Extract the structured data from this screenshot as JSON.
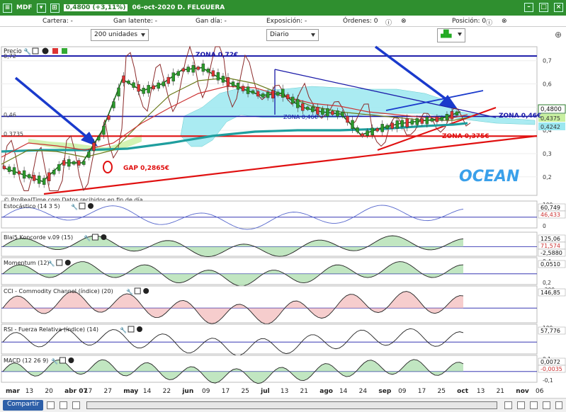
{
  "window": {
    "symbol": "MDF",
    "price_change": "0,4800 (+3,11%)",
    "date_title": "06-oct-2020 D. FELGUERA"
  },
  "account": {
    "cartera": "Cartera: -",
    "gan_latente": "Gan latente: -",
    "gan_dia": "Gan día: -",
    "exposicion": "Exposición: -",
    "ordenes": "Órdenes: 0",
    "posicion": "Posición: 0"
  },
  "toolbar": {
    "units": "200 unidades",
    "period": "Diario"
  },
  "colors": {
    "titlebar": "#2f8f2f",
    "blue_zone": "#1a1aa8",
    "red_zone": "#e01010",
    "cloud": "#9be7f0",
    "teal_ma": "#1f9e9e"
  },
  "price_panel": {
    "title": "Precio",
    "ylim": [
      0.12,
      0.76
    ],
    "yticks": [
      "0,7",
      "0,6",
      "0,5",
      "0,4",
      "0,3",
      "0,2"
    ],
    "ytick_values": [
      0.7,
      0.6,
      0.5,
      0.4,
      0.3,
      0.2
    ],
    "left_labels": {
      "top": "0,72",
      "mid": "0,46",
      "low": "0,3735"
    },
    "right_labels": {
      "last": "0,4800",
      "v2": "0,4375",
      "v3": "0,4242"
    },
    "annotations": {
      "zona_072": "ZONA 0,72€",
      "zona_046_right": "ZONA 0,46€",
      "zona_046_mid": "ZONA 0,46€",
      "zona_0375": "ZONA 0,375€",
      "gap": "GAP 0,2865€",
      "ocean": "OCEAN"
    },
    "credit": "© ProRealTime.com  Datos recibidos en fin de día",
    "zones": {
      "top": 0.72,
      "mid": 0.46,
      "low": 0.375
    }
  },
  "x_axis": {
    "labels": [
      "mar",
      "13",
      "20",
      "abr 07",
      "17",
      "27",
      "may",
      "14",
      "22",
      "jun",
      "09",
      "17",
      "25",
      "jul",
      "13",
      "21",
      "ago",
      "14",
      "24",
      "sep",
      "09",
      "17",
      "25",
      "oct",
      "13",
      "21",
      "nov",
      "06"
    ],
    "bold": [
      "mar",
      "abr 07",
      "may",
      "jun",
      "jul",
      "ago",
      "sep",
      "oct",
      "nov"
    ]
  },
  "indicators": [
    {
      "key": "stoch",
      "title": "Estocástico (14 3 5)",
      "left_ticks": [
        "100",
        "0"
      ],
      "values": [
        "60,749",
        "46,433"
      ]
    },
    {
      "key": "blai",
      "title": "Blai5 Koncorde v.09 (15)",
      "left_ticks": [],
      "values": [
        "125,06",
        "71,574",
        "-2,5880"
      ]
    },
    {
      "key": "mom",
      "title": "Momentum (12)",
      "left_ticks": [
        "0,4",
        "0,2"
      ],
      "values": [
        "0,0510"
      ]
    },
    {
      "key": "cci",
      "title": "CCI - Commodity Channel (índice) (20)",
      "left_ticks": [
        "-200"
      ],
      "values": [
        "146,85"
      ]
    },
    {
      "key": "rsi",
      "title": "RSI - Fuerza Relativa (índice) (14)",
      "left_ticks": [
        "100"
      ],
      "values": [
        "57,776"
      ]
    },
    {
      "key": "macd",
      "title": "MACD (12 26 9)",
      "left_ticks": [
        "0,1",
        "-0,1"
      ],
      "values": [
        "0,0072",
        "-0,0035"
      ]
    }
  ],
  "bottom": {
    "share": "Compartir"
  },
  "chart_data": {
    "type": "line",
    "title": "06-oct-2020 D. FELGUERA",
    "ylim": [
      0.12,
      0.76
    ],
    "x": [
      "mar",
      "13",
      "20",
      "abr 07",
      "17",
      "27",
      "may",
      "14",
      "22",
      "jun",
      "09",
      "17",
      "25",
      "jul",
      "13",
      "21",
      "ago",
      "14",
      "24",
      "sep",
      "09",
      "17",
      "25",
      "oct"
    ],
    "series": [
      {
        "values": [
          0.24,
          0.21,
          0.18,
          0.26,
          0.26,
          0.4,
          0.62,
          0.57,
          0.6,
          0.66,
          0.67,
          0.62,
          0.58,
          0.55,
          0.56,
          0.5,
          0.48,
          0.47,
          0.38,
          0.41,
          0.43,
          0.44,
          0.45,
          0.48
        ]
      }
    ]
  }
}
